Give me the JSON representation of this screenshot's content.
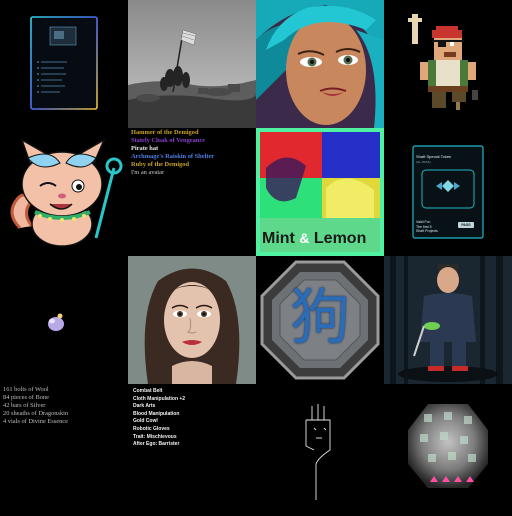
{
  "tiles": {
    "menu_card": {
      "items": [
        "",
        "",
        "",
        "",
        "",
        "",
        ""
      ]
    },
    "names_list": {
      "lines": [
        "Hammer of the Demigod",
        "Stately Cloak of Vengeance",
        "Pirate hat",
        "Archmage's Raiskin of Shelter",
        "Ruby of the Demigod",
        "I'm an avatar"
      ]
    },
    "mint_lemon": {
      "word1": "Mint",
      "amp": "&",
      "word2": "Lemon"
    },
    "special_token": {
      "title": "Shaft Special Token",
      "subtitle": "(GL.PASS)",
      "valid_label": "Valid For:",
      "valid_value_1": "The first 5",
      "valid_value_2": "Shaft Projects",
      "pass_label": "PASS"
    },
    "materials": {
      "lines": [
        "161 bolts of Wool",
        "84 pieces of Bone",
        "42 bars of Silver",
        "20 sheaths of Dragonskin",
        "4 vials of Divine Essence"
      ]
    },
    "traits": {
      "lines": [
        "Combat Belt",
        "Cloth Manipulation +2",
        "Dark Arts",
        "Blood Manipulation",
        "Gold Cowl",
        "Robotic Gloves",
        "Trait: Mischievous",
        "After Ego: Barrister"
      ]
    },
    "octagon_glyph": {
      "glyph": "狗"
    }
  },
  "colors": {
    "background": "#000000",
    "gold": "#c9a227",
    "purple": "#8b3fd0",
    "blue": "#4f7fe6",
    "cyan_border": "#1fb6c8",
    "mint_green": "#4ff2a0"
  }
}
